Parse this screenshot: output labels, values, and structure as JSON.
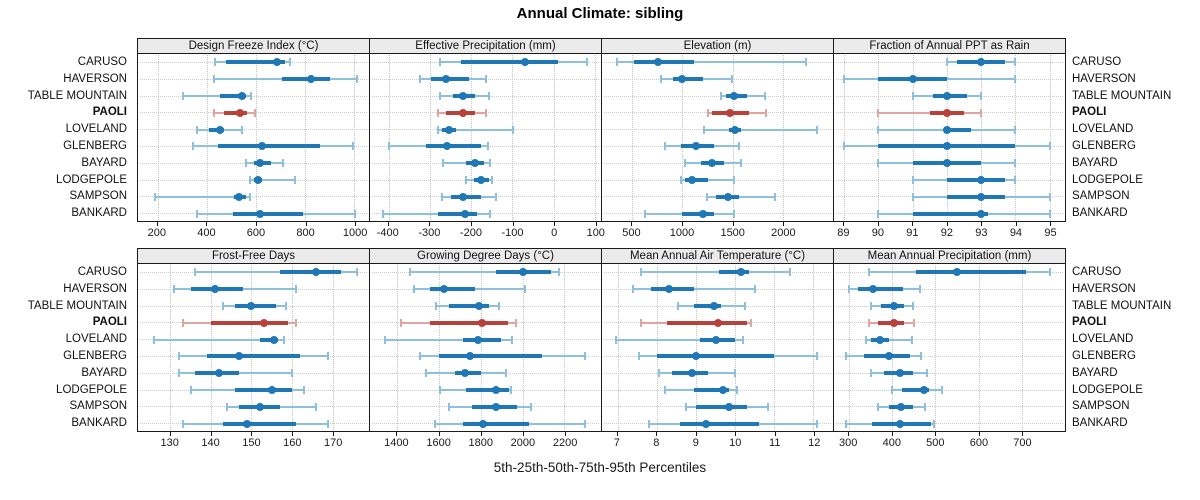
{
  "title": "Annual Climate: sibling",
  "caption": "5th-25th-50th-75th-95th Percentiles",
  "colors": {
    "normal": "#1f77b4",
    "normal_light": "#8ec0de",
    "highlight": "#b8413c",
    "highlight_light": "#dfa5a1",
    "strip_bg": "#ebebeb",
    "grid": "#c6c6c6",
    "border": "#1a1a1a"
  },
  "chart_data": {
    "type": "scatter",
    "subtype": "multi-panel percentile interval dot plot (5th-25th-50th-75th-95th)",
    "layout": {
      "rows": 2,
      "cols": 4,
      "grid": "dotted",
      "station_labels": "both-sides"
    },
    "percentile_labels": [
      "5th",
      "25th",
      "50th",
      "75th",
      "95th"
    ],
    "stations": [
      "CARUSO",
      "HAVERSON",
      "TABLE MOUNTAIN",
      "PAOLI",
      "LOVELAND",
      "GLENBERG",
      "BAYARD",
      "LODGEPOLE",
      "SAMPSON",
      "BANKARD"
    ],
    "highlight_station": "PAOLI",
    "panels": [
      {
        "title": "Design Freeze Index (°C)",
        "xlim": [
          120,
          1060
        ],
        "ticks": [
          200,
          400,
          600,
          800,
          1000
        ],
        "values": {
          "CARUSO": [
            435,
            480,
            685,
            720,
            740
          ],
          "HAVERSON": [
            430,
            705,
            825,
            900,
            1010
          ],
          "TABLE MOUNTAIN": [
            305,
            455,
            545,
            560,
            580
          ],
          "PAOLI": [
            430,
            470,
            535,
            565,
            595
          ],
          "LOVELAND": [
            360,
            410,
            455,
            470,
            545
          ],
          "GLENBERG": [
            345,
            445,
            625,
            860,
            995
          ],
          "BAYARD": [
            560,
            590,
            615,
            660,
            710
          ],
          "LODGEPOLE": [
            575,
            590,
            610,
            625,
            760
          ],
          "SAMPSON": [
            190,
            510,
            530,
            560,
            575
          ],
          "BANKARD": [
            360,
            505,
            615,
            790,
            1005
          ]
        }
      },
      {
        "title": "Effective Precipitation (mm)",
        "xlim": [
          -445,
          115
        ],
        "ticks": [
          -400,
          -300,
          -200,
          -100,
          0,
          100
        ],
        "values": {
          "CARUSO": [
            -275,
            -225,
            -70,
            10,
            80
          ],
          "HAVERSON": [
            -325,
            -297,
            -260,
            -205,
            -165
          ],
          "TABLE MOUNTAIN": [
            -275,
            -245,
            -220,
            -190,
            -157
          ],
          "PAOLI": [
            -280,
            -260,
            -220,
            -190,
            -163
          ],
          "LOVELAND": [
            -281,
            -270,
            -254,
            -237,
            -98
          ],
          "GLENBERG": [
            -398,
            -310,
            -258,
            -177,
            -159
          ],
          "BAYARD": [
            -267,
            -213,
            -190,
            -169,
            -155
          ],
          "LODGEPOLE": [
            -213,
            -193,
            -177,
            -157,
            -150
          ],
          "SAMPSON": [
            -270,
            -249,
            -220,
            -177,
            -140
          ],
          "BANKARD": [
            -413,
            -281,
            -215,
            -185,
            -154
          ]
        }
      },
      {
        "title": "Elevation (m)",
        "xlim": [
          200,
          2500
        ],
        "ticks": [
          500,
          1000,
          1500,
          2000
        ],
        "values": {
          "CARUSO": [
            347,
            517,
            755,
            1120,
            2235
          ],
          "HAVERSON": [
            790,
            910,
            1000,
            1205,
            1490
          ],
          "TABLE MOUNTAIN": [
            1380,
            1430,
            1515,
            1640,
            1820
          ],
          "PAOLI": [
            1255,
            1300,
            1475,
            1660,
            1835
          ],
          "LOVELAND": [
            1215,
            1465,
            1520,
            1580,
            2345
          ],
          "GLENBERG": [
            830,
            990,
            1140,
            1320,
            1565
          ],
          "BAYARD": [
            1025,
            1185,
            1295,
            1410,
            1585
          ],
          "LODGEPOLE": [
            985,
            1030,
            1100,
            1255,
            1515
          ],
          "SAMPSON": [
            1245,
            1335,
            1450,
            1565,
            1920
          ],
          "BANKARD": [
            630,
            1000,
            1205,
            1320,
            1510
          ]
        }
      },
      {
        "title": "Fraction of Annual PPT as Rain",
        "xlim": [
          88.7,
          95.45
        ],
        "ticks": [
          89,
          90,
          91,
          92,
          93,
          94,
          95
        ],
        "values": {
          "CARUSO": [
            92.0,
            92.3,
            93.0,
            93.7,
            94.0
          ],
          "HAVERSON": [
            89.0,
            90.0,
            91.0,
            92.0,
            94.0
          ],
          "TABLE MOUNTAIN": [
            91.0,
            91.6,
            92.0,
            92.6,
            93.0
          ],
          "PAOLI": [
            90.0,
            91.5,
            92.0,
            92.5,
            93.0
          ],
          "LOVELAND": [
            90.0,
            91.9,
            92.0,
            92.7,
            94.0
          ],
          "GLENBERG": [
            89.0,
            90.0,
            92.0,
            94.0,
            95.0
          ],
          "BAYARD": [
            90.0,
            91.0,
            92.0,
            93.0,
            94.0
          ],
          "LODGEPOLE": [
            91.0,
            92.0,
            93.0,
            93.7,
            94.0
          ],
          "SAMPSON": [
            91.0,
            92.0,
            93.0,
            93.7,
            95.0
          ],
          "BANKARD": [
            90.0,
            91.0,
            93.0,
            93.2,
            95.0
          ]
        }
      },
      {
        "title": "Frost-Free Days",
        "xlim": [
          122,
          179
        ],
        "ticks": [
          130,
          140,
          150,
          160,
          170
        ],
        "values": {
          "CARUSO": [
            136,
            157,
            166,
            172,
            176
          ],
          "HAVERSON": [
            131,
            135,
            141,
            148,
            161
          ],
          "TABLE MOUNTAIN": [
            143,
            146,
            150,
            156,
            158.5
          ],
          "PAOLI": [
            133,
            140,
            153,
            159,
            161
          ],
          "LOVELAND": [
            126,
            152,
            155.5,
            156.5,
            158
          ],
          "GLENBERG": [
            132,
            139,
            147,
            162,
            169
          ],
          "BAYARD": [
            132,
            136,
            142,
            147,
            160
          ],
          "LODGEPOLE": [
            135,
            146,
            155,
            160,
            163
          ],
          "SAMPSON": [
            144,
            147,
            152,
            157,
            166
          ],
          "BANKARD": [
            133,
            143,
            149,
            161,
            169
          ]
        }
      },
      {
        "title": "Growing Degree Days (°C)",
        "xlim": [
          1270,
          2375
        ],
        "ticks": [
          1400,
          1600,
          1800,
          2000,
          2200
        ],
        "values": {
          "CARUSO": [
            1460,
            1875,
            2000,
            2135,
            2175
          ],
          "HAVERSON": [
            1480,
            1555,
            1625,
            1770,
            2010
          ],
          "TABLE MOUNTAIN": [
            1585,
            1650,
            1790,
            1840,
            1885
          ],
          "PAOLI": [
            1420,
            1555,
            1805,
            1930,
            1970
          ],
          "LOVELAND": [
            1340,
            1715,
            1785,
            1895,
            1950
          ],
          "GLENBERG": [
            1510,
            1600,
            1750,
            2095,
            2300
          ],
          "BAYARD": [
            1540,
            1675,
            1725,
            1800,
            1920
          ],
          "LODGEPOLE": [
            1605,
            1730,
            1875,
            1935,
            1945
          ],
          "SAMPSON": [
            1650,
            1760,
            1875,
            1975,
            2040
          ],
          "BANKARD": [
            1580,
            1715,
            1810,
            2030,
            2300
          ]
        }
      },
      {
        "title": "Mean Annual Air Temperature (°C)",
        "xlim": [
          6.6,
          12.5
        ],
        "ticks": [
          7,
          8,
          9,
          10,
          11,
          12
        ],
        "values": {
          "CARUSO": [
            7.6,
            9.6,
            10.15,
            10.35,
            11.4
          ],
          "HAVERSON": [
            7.4,
            7.85,
            8.3,
            8.95,
            10.5
          ],
          "TABLE MOUNTAIN": [
            8.55,
            8.95,
            9.45,
            9.65,
            10.25
          ],
          "PAOLI": [
            7.6,
            8.25,
            9.55,
            10.3,
            10.4
          ],
          "LOVELAND": [
            6.95,
            9.1,
            9.5,
            10.0,
            10.2
          ],
          "GLENBERG": [
            7.55,
            8.0,
            9.0,
            11.0,
            12.1
          ],
          "BAYARD": [
            8.05,
            8.4,
            8.9,
            9.3,
            10.0
          ],
          "LODGEPOLE": [
            8.2,
            8.95,
            9.7,
            9.85,
            10.05
          ],
          "SAMPSON": [
            8.75,
            9.0,
            9.85,
            10.3,
            10.85
          ],
          "BANKARD": [
            7.8,
            8.6,
            9.25,
            10.6,
            12.1
          ]
        }
      },
      {
        "title": "Mean Annual Precipitation (mm)",
        "xlim": [
          265,
          800
        ],
        "ticks": [
          300,
          400,
          500,
          600,
          700
        ],
        "values": {
          "CARUSO": [
            345,
            455,
            550,
            710,
            765
          ],
          "HAVERSON": [
            300,
            320,
            356,
            425,
            465
          ],
          "TABLE MOUNTAIN": [
            350,
            375,
            403,
            428,
            447
          ],
          "PAOLI": [
            345,
            368,
            403,
            426,
            450
          ],
          "LOVELAND": [
            340,
            350,
            372,
            393,
            445
          ],
          "GLENBERG": [
            293,
            335,
            392,
            440,
            467
          ],
          "BAYARD": [
            350,
            380,
            418,
            449,
            480
          ],
          "LODGEPOLE": [
            400,
            423,
            473,
            486,
            514
          ],
          "SAMPSON": [
            368,
            392,
            420,
            449,
            476
          ],
          "BANKARD": [
            293,
            353,
            419,
            490,
            497
          ]
        }
      }
    ]
  }
}
